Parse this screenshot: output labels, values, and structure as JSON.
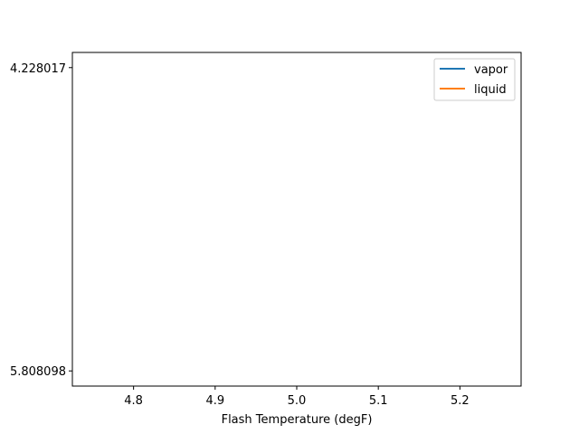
{
  "chart_data": {
    "type": "line",
    "xlabel": "Flash Temperature (degF)",
    "ylabel": "",
    "title": "",
    "xlim": [
      4.725,
      5.275
    ],
    "x_ticks": [
      "4.8",
      "4.9",
      "5.0",
      "5.1",
      "5.2"
    ],
    "x_tick_values": [
      4.8,
      4.9,
      5.0,
      5.1,
      5.2
    ],
    "y_ticks": [
      "4.228017",
      "5.808098"
    ],
    "y_axis_inverted": true,
    "series": [
      {
        "name": "vapor",
        "color": "#1f77b4",
        "x": [],
        "y": []
      },
      {
        "name": "liquid",
        "color": "#ff7f0e",
        "x": [],
        "y": []
      }
    ],
    "legend": {
      "placement": "top-right"
    },
    "grid": false
  }
}
